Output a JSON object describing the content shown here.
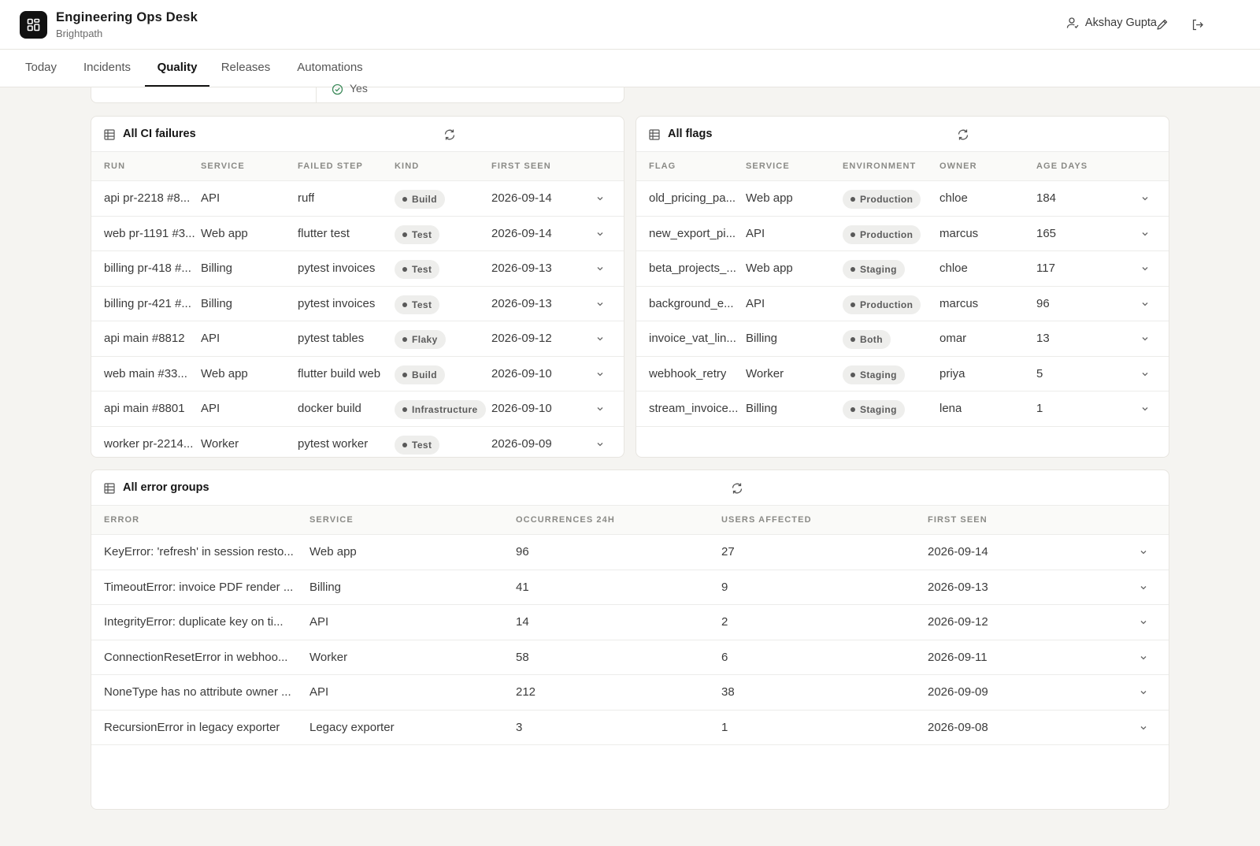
{
  "app": {
    "title": "Engineering Ops Desk",
    "subtitle": "Brightpath",
    "user_name": "Akshay Gupta"
  },
  "tabs": [
    {
      "label": "Today",
      "active": false
    },
    {
      "label": "Incidents",
      "active": false
    },
    {
      "label": "Quality",
      "active": true
    },
    {
      "label": "Releases",
      "active": false
    },
    {
      "label": "Automations",
      "active": false
    }
  ],
  "stub": {
    "value": "Yes"
  },
  "ci_failures": {
    "title": "All CI failures",
    "columns": [
      "RUN",
      "SERVICE",
      "FAILED STEP",
      "KIND",
      "FIRST SEEN"
    ],
    "rows": [
      {
        "run": "api pr-2218 #8...",
        "service": "API",
        "step": "ruff",
        "kind": "Build",
        "first_seen": "2026-09-14"
      },
      {
        "run": "web pr-1191 #3...",
        "service": "Web app",
        "step": "flutter test",
        "kind": "Test",
        "first_seen": "2026-09-14"
      },
      {
        "run": "billing pr-418 #...",
        "service": "Billing",
        "step": "pytest invoices",
        "kind": "Test",
        "first_seen": "2026-09-13"
      },
      {
        "run": "billing pr-421 #...",
        "service": "Billing",
        "step": "pytest invoices",
        "kind": "Test",
        "first_seen": "2026-09-13"
      },
      {
        "run": "api main #8812",
        "service": "API",
        "step": "pytest tables",
        "kind": "Flaky",
        "first_seen": "2026-09-12"
      },
      {
        "run": "web main #33...",
        "service": "Web app",
        "step": "flutter build web",
        "kind": "Build",
        "first_seen": "2026-09-10"
      },
      {
        "run": "api main #8801",
        "service": "API",
        "step": "docker build",
        "kind": "Infrastructure",
        "first_seen": "2026-09-10"
      },
      {
        "run": "worker pr-2214...",
        "service": "Worker",
        "step": "pytest worker",
        "kind": "Test",
        "first_seen": "2026-09-09"
      }
    ]
  },
  "flags": {
    "title": "All flags",
    "columns": [
      "FLAG",
      "SERVICE",
      "ENVIRONMENT",
      "OWNER",
      "AGE DAYS"
    ],
    "rows": [
      {
        "flag": "old_pricing_pa...",
        "service": "Web app",
        "environment": "Production",
        "owner": "chloe",
        "age": "184"
      },
      {
        "flag": "new_export_pi...",
        "service": "API",
        "environment": "Production",
        "owner": "marcus",
        "age": "165"
      },
      {
        "flag": "beta_projects_...",
        "service": "Web app",
        "environment": "Staging",
        "owner": "chloe",
        "age": "117"
      },
      {
        "flag": "background_e...",
        "service": "API",
        "environment": "Production",
        "owner": "marcus",
        "age": "96"
      },
      {
        "flag": "invoice_vat_lin...",
        "service": "Billing",
        "environment": "Both",
        "owner": "omar",
        "age": "13"
      },
      {
        "flag": "webhook_retry",
        "service": "Worker",
        "environment": "Staging",
        "owner": "priya",
        "age": "5"
      },
      {
        "flag": "stream_invoice...",
        "service": "Billing",
        "environment": "Staging",
        "owner": "lena",
        "age": "1"
      }
    ]
  },
  "errors": {
    "title": "All error groups",
    "columns": [
      "ERROR",
      "SERVICE",
      "OCCURRENCES 24H",
      "USERS AFFECTED",
      "FIRST SEEN"
    ],
    "rows": [
      {
        "error": "KeyError: 'refresh' in session resto...",
        "service": "Web app",
        "occ": "96",
        "users": "27",
        "first_seen": "2026-09-14"
      },
      {
        "error": "TimeoutError: invoice PDF render ...",
        "service": "Billing",
        "occ": "41",
        "users": "9",
        "first_seen": "2026-09-13"
      },
      {
        "error": "IntegrityError: duplicate key on ti...",
        "service": "API",
        "occ": "14",
        "users": "2",
        "first_seen": "2026-09-12"
      },
      {
        "error": "ConnectionResetError in webhoo...",
        "service": "Worker",
        "occ": "58",
        "users": "6",
        "first_seen": "2026-09-11"
      },
      {
        "error": "NoneType has no attribute owner ...",
        "service": "API",
        "occ": "212",
        "users": "38",
        "first_seen": "2026-09-09"
      },
      {
        "error": "RecursionError in legacy exporter",
        "service": "Legacy exporter",
        "occ": "3",
        "users": "1",
        "first_seen": "2026-09-08"
      }
    ]
  }
}
